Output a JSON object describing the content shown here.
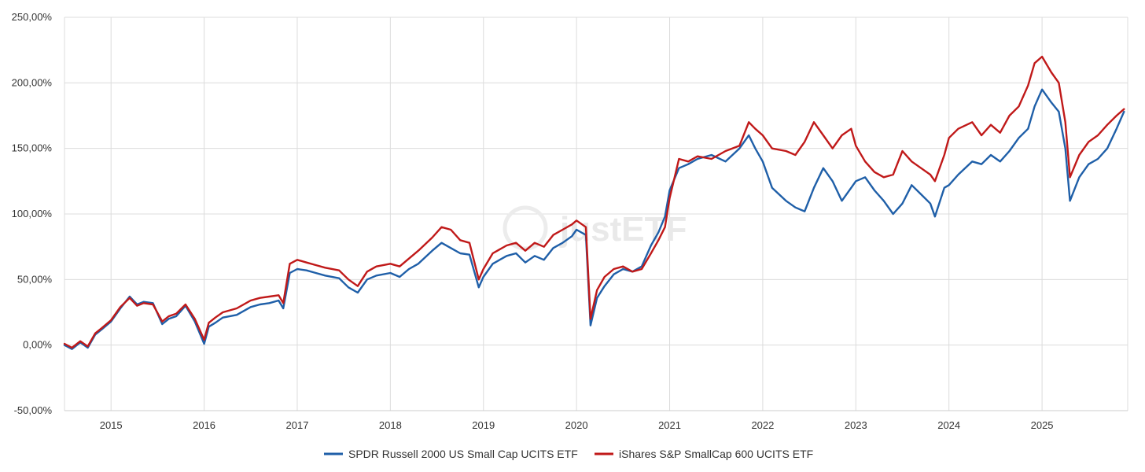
{
  "chart_data": {
    "type": "line",
    "title": "",
    "xlabel": "",
    "ylabel": "",
    "xlim": [
      2014.5,
      2025.92
    ],
    "ylim": [
      -50,
      250
    ],
    "y_ticks": [
      {
        "value": -50,
        "label": "-50,00%"
      },
      {
        "value": 0,
        "label": "0,00%"
      },
      {
        "value": 50,
        "label": "50,00%"
      },
      {
        "value": 100,
        "label": "100,00%"
      },
      {
        "value": 150,
        "label": "150,00%"
      },
      {
        "value": 200,
        "label": "200,00%"
      },
      {
        "value": 250,
        "label": "250,00%"
      }
    ],
    "x_ticks": [
      {
        "value": 2015,
        "label": "2015"
      },
      {
        "value": 2016,
        "label": "2016"
      },
      {
        "value": 2017,
        "label": "2017"
      },
      {
        "value": 2018,
        "label": "2018"
      },
      {
        "value": 2019,
        "label": "2019"
      },
      {
        "value": 2020,
        "label": "2020"
      },
      {
        "value": 2021,
        "label": "2021"
      },
      {
        "value": 2022,
        "label": "2022"
      },
      {
        "value": 2023,
        "label": "2023"
      },
      {
        "value": 2024,
        "label": "2024"
      },
      {
        "value": 2025,
        "label": "2025"
      }
    ],
    "grid": true,
    "legend_position": "bottom-center",
    "watermark": "justETF",
    "series": [
      {
        "name": "SPDR Russell 2000 US Small Cap UCITS ETF",
        "color": "#1f5fa8",
        "x": [
          2014.5,
          2014.58,
          2014.67,
          2014.75,
          2014.83,
          2014.9,
          2015.0,
          2015.1,
          2015.2,
          2015.28,
          2015.35,
          2015.45,
          2015.55,
          2015.62,
          2015.7,
          2015.8,
          2015.9,
          2016.0,
          2016.05,
          2016.12,
          2016.2,
          2016.35,
          2016.5,
          2016.6,
          2016.7,
          2016.8,
          2016.85,
          2016.92,
          2017.0,
          2017.1,
          2017.2,
          2017.3,
          2017.45,
          2017.55,
          2017.65,
          2017.75,
          2017.85,
          2018.0,
          2018.1,
          2018.2,
          2018.3,
          2018.45,
          2018.55,
          2018.65,
          2018.75,
          2018.85,
          2018.95,
          2019.0,
          2019.1,
          2019.25,
          2019.35,
          2019.45,
          2019.55,
          2019.65,
          2019.75,
          2019.85,
          2019.95,
          2020.0,
          2020.1,
          2020.15,
          2020.22,
          2020.3,
          2020.4,
          2020.5,
          2020.6,
          2020.7,
          2020.8,
          2020.88,
          2020.95,
          2021.0,
          2021.1,
          2021.2,
          2021.3,
          2021.45,
          2021.6,
          2021.75,
          2021.85,
          2021.92,
          2022.0,
          2022.1,
          2022.25,
          2022.35,
          2022.45,
          2022.55,
          2022.65,
          2022.75,
          2022.85,
          2022.95,
          2023.0,
          2023.1,
          2023.2,
          2023.3,
          2023.4,
          2023.5,
          2023.6,
          2023.7,
          2023.8,
          2023.85,
          2023.95,
          2024.0,
          2024.1,
          2024.25,
          2024.35,
          2024.45,
          2024.55,
          2024.65,
          2024.75,
          2024.85,
          2024.92,
          2025.0,
          2025.1,
          2025.18,
          2025.25,
          2025.3,
          2025.4,
          2025.5,
          2025.6,
          2025.7,
          2025.8,
          2025.88
        ],
        "values": [
          0,
          -3,
          2,
          -2,
          8,
          12,
          18,
          28,
          37,
          31,
          33,
          32,
          16,
          20,
          22,
          30,
          18,
          1,
          14,
          17,
          21,
          23,
          29,
          31,
          32,
          34,
          28,
          55,
          58,
          57,
          55,
          53,
          51,
          44,
          40,
          50,
          53,
          55,
          52,
          58,
          62,
          72,
          78,
          74,
          70,
          69,
          44,
          52,
          62,
          68,
          70,
          63,
          68,
          65,
          74,
          78,
          83,
          88,
          84,
          15,
          36,
          45,
          54,
          58,
          56,
          60,
          76,
          86,
          98,
          118,
          135,
          138,
          142,
          145,
          140,
          150,
          160,
          150,
          140,
          120,
          110,
          105,
          102,
          120,
          135,
          125,
          110,
          120,
          125,
          128,
          118,
          110,
          100,
          108,
          122,
          115,
          108,
          98,
          120,
          122,
          130,
          140,
          138,
          145,
          140,
          148,
          158,
          165,
          182,
          195,
          185,
          178,
          150,
          110,
          128,
          138,
          142,
          150,
          165,
          178
        ]
      },
      {
        "name": "iShares S&P SmallCap 600 UCITS ETF",
        "color": "#c01919",
        "x": [
          2014.5,
          2014.58,
          2014.67,
          2014.75,
          2014.83,
          2014.9,
          2015.0,
          2015.1,
          2015.2,
          2015.28,
          2015.35,
          2015.45,
          2015.55,
          2015.62,
          2015.7,
          2015.8,
          2015.9,
          2016.0,
          2016.05,
          2016.12,
          2016.2,
          2016.35,
          2016.5,
          2016.6,
          2016.7,
          2016.8,
          2016.85,
          2016.92,
          2017.0,
          2017.1,
          2017.2,
          2017.3,
          2017.45,
          2017.55,
          2017.65,
          2017.75,
          2017.85,
          2018.0,
          2018.1,
          2018.2,
          2018.3,
          2018.45,
          2018.55,
          2018.65,
          2018.75,
          2018.85,
          2018.95,
          2019.0,
          2019.1,
          2019.25,
          2019.35,
          2019.45,
          2019.55,
          2019.65,
          2019.75,
          2019.85,
          2019.95,
          2020.0,
          2020.1,
          2020.15,
          2020.22,
          2020.3,
          2020.4,
          2020.5,
          2020.6,
          2020.7,
          2020.8,
          2020.88,
          2020.95,
          2021.0,
          2021.1,
          2021.2,
          2021.3,
          2021.45,
          2021.6,
          2021.75,
          2021.85,
          2021.92,
          2022.0,
          2022.1,
          2022.25,
          2022.35,
          2022.45,
          2022.55,
          2022.65,
          2022.75,
          2022.85,
          2022.95,
          2023.0,
          2023.1,
          2023.2,
          2023.3,
          2023.4,
          2023.5,
          2023.6,
          2023.7,
          2023.8,
          2023.85,
          2023.95,
          2024.0,
          2024.1,
          2024.25,
          2024.35,
          2024.45,
          2024.55,
          2024.65,
          2024.75,
          2024.85,
          2024.92,
          2025.0,
          2025.1,
          2025.18,
          2025.25,
          2025.3,
          2025.4,
          2025.5,
          2025.6,
          2025.7,
          2025.8,
          2025.88
        ],
        "values": [
          1,
          -2,
          3,
          -1,
          9,
          13,
          19,
          29,
          36,
          30,
          32,
          31,
          18,
          22,
          24,
          31,
          20,
          4,
          17,
          21,
          25,
          28,
          34,
          36,
          37,
          38,
          32,
          62,
          65,
          63,
          61,
          59,
          57,
          50,
          45,
          56,
          60,
          62,
          60,
          66,
          72,
          82,
          90,
          88,
          80,
          78,
          50,
          58,
          70,
          76,
          78,
          72,
          78,
          75,
          84,
          88,
          92,
          95,
          90,
          20,
          42,
          52,
          58,
          60,
          56,
          58,
          70,
          80,
          90,
          112,
          142,
          140,
          144,
          142,
          148,
          152,
          170,
          165,
          160,
          150,
          148,
          145,
          155,
          170,
          160,
          150,
          160,
          165,
          152,
          140,
          132,
          128,
          130,
          148,
          140,
          135,
          130,
          125,
          145,
          158,
          165,
          170,
          160,
          168,
          162,
          175,
          182,
          198,
          215,
          220,
          208,
          200,
          170,
          128,
          145,
          155,
          160,
          168,
          175,
          180
        ]
      }
    ]
  }
}
